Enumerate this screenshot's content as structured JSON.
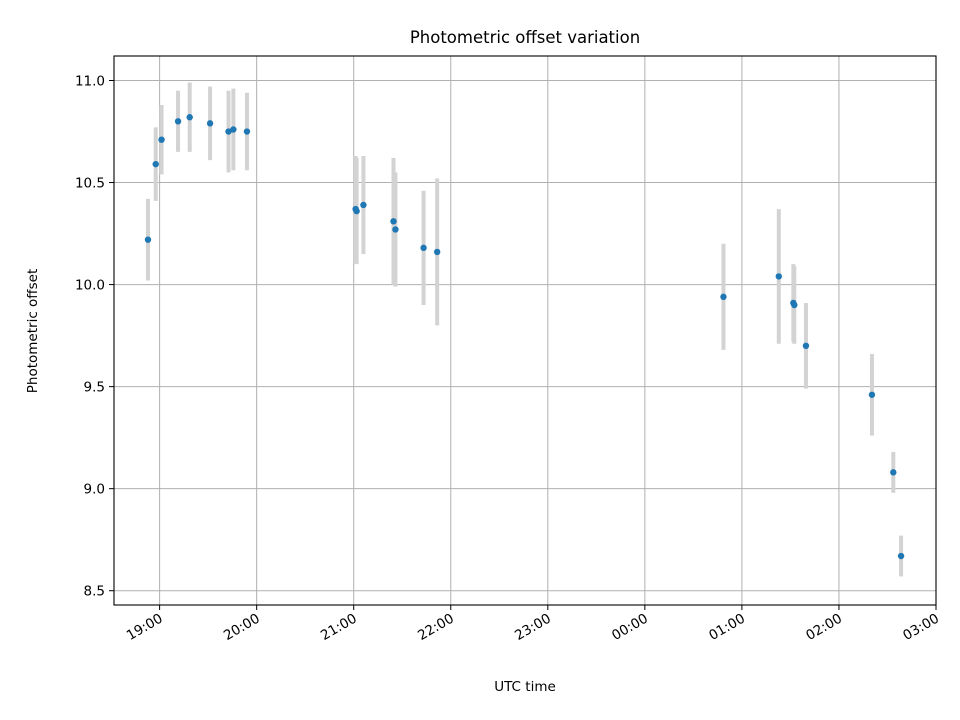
{
  "chart_data": {
    "type": "scatter",
    "title": "Photometric offset variation",
    "xlabel": "UTC time",
    "ylabel": "Photometric offset",
    "grid": true,
    "x_unit": "hours",
    "xlim": [
      18.53,
      27.0
    ],
    "ylim": [
      8.43,
      11.12
    ],
    "x_ticks": [
      19,
      20,
      21,
      22,
      23,
      24,
      25,
      26,
      27
    ],
    "x_tick_labels": [
      "19:00",
      "20:00",
      "21:00",
      "22:00",
      "23:00",
      "00:00",
      "01:00",
      "02:00",
      "03:00"
    ],
    "y_ticks": [
      8.5,
      9.0,
      9.5,
      10.0,
      10.5,
      11.0
    ],
    "y_tick_labels": [
      "8.5",
      "9.0",
      "9.5",
      "10.0",
      "10.5",
      "11.0"
    ],
    "colors": {
      "points": "#1f77b4",
      "errorbars": "#d3d3d3",
      "grid": "#b0b0b0"
    },
    "points": [
      {
        "x": 18.88,
        "y": 10.22,
        "err": 0.2
      },
      {
        "x": 18.96,
        "y": 10.59,
        "err": 0.18
      },
      {
        "x": 19.02,
        "y": 10.71,
        "err": 0.17
      },
      {
        "x": 19.19,
        "y": 10.8,
        "err": 0.15
      },
      {
        "x": 19.31,
        "y": 10.82,
        "err": 0.17
      },
      {
        "x": 19.52,
        "y": 10.79,
        "err": 0.18
      },
      {
        "x": 19.71,
        "y": 10.75,
        "err": 0.2
      },
      {
        "x": 19.76,
        "y": 10.76,
        "err": 0.2
      },
      {
        "x": 19.9,
        "y": 10.75,
        "err": 0.19
      },
      {
        "x": 21.02,
        "y": 10.37,
        "err": 0.26
      },
      {
        "x": 21.03,
        "y": 10.36,
        "err": 0.26
      },
      {
        "x": 21.1,
        "y": 10.39,
        "err": 0.24
      },
      {
        "x": 21.41,
        "y": 10.31,
        "err": 0.31
      },
      {
        "x": 21.43,
        "y": 10.27,
        "err": 0.28
      },
      {
        "x": 21.72,
        "y": 10.18,
        "err": 0.28
      },
      {
        "x": 21.86,
        "y": 10.16,
        "err": 0.36
      },
      {
        "x": 24.81,
        "y": 9.94,
        "err": 0.26
      },
      {
        "x": 25.38,
        "y": 10.04,
        "err": 0.33
      },
      {
        "x": 25.53,
        "y": 9.91,
        "err": 0.19
      },
      {
        "x": 25.54,
        "y": 9.9,
        "err": 0.19
      },
      {
        "x": 25.66,
        "y": 9.7,
        "err": 0.21
      },
      {
        "x": 26.34,
        "y": 9.46,
        "err": 0.2
      },
      {
        "x": 26.56,
        "y": 9.08,
        "err": 0.1
      },
      {
        "x": 26.64,
        "y": 8.67,
        "err": 0.1
      }
    ]
  }
}
